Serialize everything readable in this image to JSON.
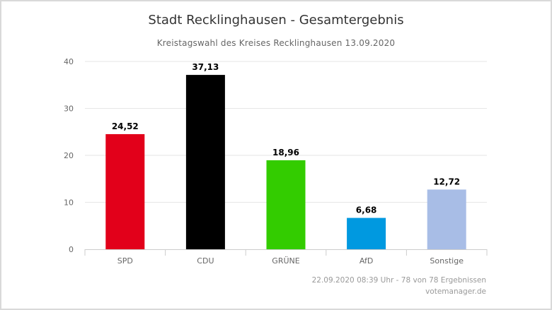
{
  "title": "Stadt Recklinghausen - Gesamtergebnis",
  "subtitle": "Kreistagswahl des Kreises Recklinghausen 13.09.2020",
  "footer": {
    "status": "22.09.2020 08:39 Uhr - 78 von 78 Ergebnissen",
    "source": "votemanager.de"
  },
  "chart_data": {
    "type": "bar",
    "categories": [
      "SPD",
      "CDU",
      "GRÜNE",
      "AfD",
      "Sonstige"
    ],
    "values": [
      24.52,
      37.13,
      18.96,
      6.68,
      12.72
    ],
    "data_labels": [
      "24,52",
      "37,13",
      "18,96",
      "6,68",
      "12,72"
    ],
    "colors": [
      "#e2001a",
      "#000000",
      "#33cc00",
      "#0099e0",
      "#a8bde6"
    ],
    "ylim": [
      0,
      40
    ],
    "yticks": [
      0,
      10,
      20,
      30,
      40
    ],
    "grid": true,
    "legend": "none"
  }
}
